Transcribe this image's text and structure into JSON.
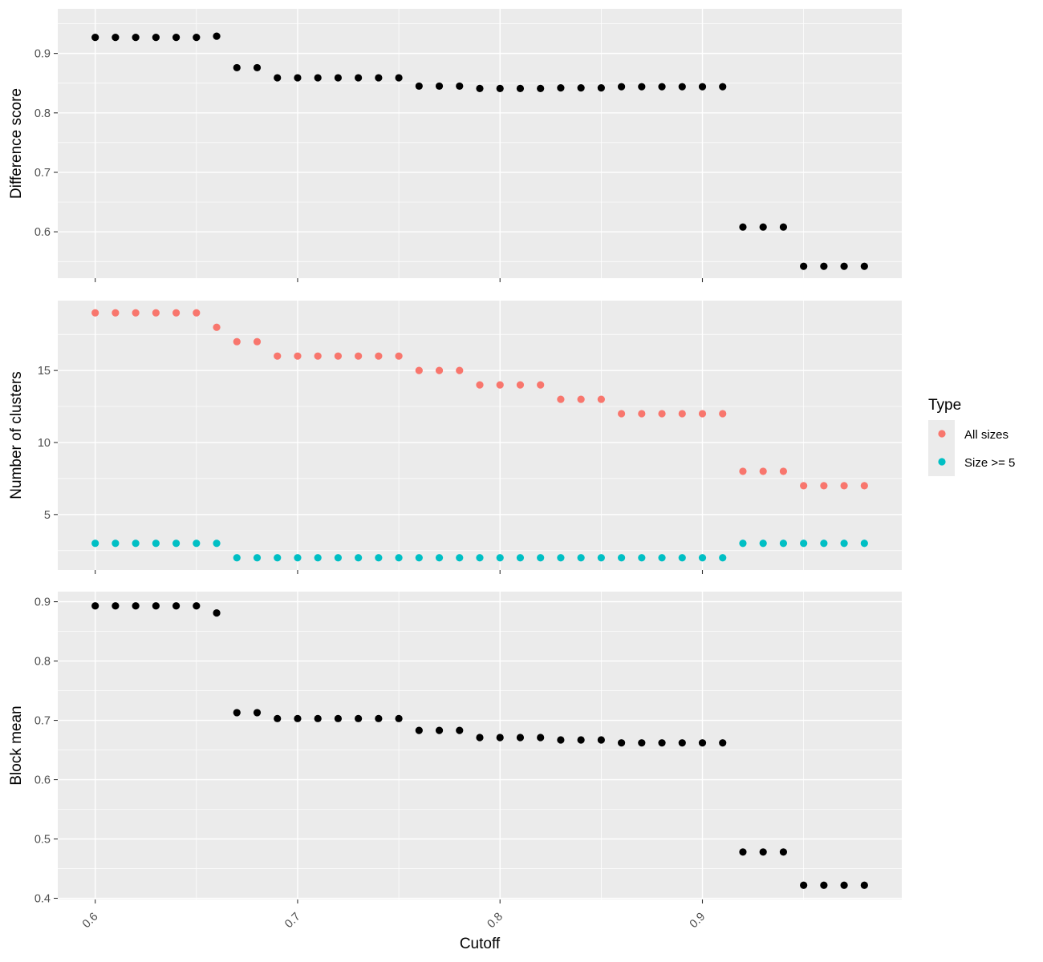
{
  "chart_data": [
    {
      "type": "scatter",
      "ylabel": "Difference score",
      "xlabel": "",
      "xlim": [
        0.5815,
        0.9985
      ],
      "ylim": [
        0.522,
        0.975
      ],
      "xticks": [
        0.6,
        0.7,
        0.8,
        0.9
      ],
      "xtick_labels": [
        "0.6",
        "0.7",
        "0.8",
        "0.9"
      ],
      "yticks": [
        0.6,
        0.7,
        0.8,
        0.9
      ],
      "ytick_labels": [
        "0.6",
        "0.7",
        "0.8",
        "0.9"
      ],
      "grid": true,
      "series": [
        {
          "color": "#000000",
          "x": [
            0.6,
            0.61,
            0.62,
            0.63,
            0.64,
            0.65,
            0.66,
            0.67,
            0.68,
            0.69,
            0.7,
            0.71,
            0.72,
            0.73,
            0.74,
            0.75,
            0.76,
            0.77,
            0.78,
            0.79,
            0.8,
            0.81,
            0.82,
            0.83,
            0.84,
            0.85,
            0.86,
            0.87,
            0.88,
            0.89,
            0.9,
            0.91,
            0.92,
            0.93,
            0.94,
            0.95,
            0.96,
            0.97,
            0.98
          ],
          "y": [
            0.927,
            0.927,
            0.927,
            0.927,
            0.927,
            0.927,
            0.929,
            0.876,
            0.876,
            0.859,
            0.859,
            0.859,
            0.859,
            0.859,
            0.859,
            0.859,
            0.845,
            0.845,
            0.845,
            0.841,
            0.841,
            0.841,
            0.841,
            0.842,
            0.842,
            0.842,
            0.844,
            0.844,
            0.844,
            0.844,
            0.844,
            0.844,
            0.608,
            0.608,
            0.608,
            0.542,
            0.542,
            0.542,
            0.542
          ]
        }
      ]
    },
    {
      "type": "scatter",
      "ylabel": "Number of clusters",
      "xlabel": "",
      "xlim": [
        0.5815,
        0.9985
      ],
      "ylim": [
        1.15,
        19.85
      ],
      "xticks": [
        0.6,
        0.7,
        0.8,
        0.9
      ],
      "xtick_labels": [
        "0.6",
        "0.7",
        "0.8",
        "0.9"
      ],
      "yticks": [
        5,
        10,
        15
      ],
      "ytick_labels": [
        "5",
        "10",
        "15"
      ],
      "grid": true,
      "legend": {
        "title": "Type",
        "position": "right",
        "entries": [
          "All sizes",
          "Size >= 5"
        ]
      },
      "series": [
        {
          "name": "All sizes",
          "color": "#F8766D",
          "x": [
            0.6,
            0.61,
            0.62,
            0.63,
            0.64,
            0.65,
            0.66,
            0.67,
            0.68,
            0.69,
            0.7,
            0.71,
            0.72,
            0.73,
            0.74,
            0.75,
            0.76,
            0.77,
            0.78,
            0.79,
            0.8,
            0.81,
            0.82,
            0.83,
            0.84,
            0.85,
            0.86,
            0.87,
            0.88,
            0.89,
            0.9,
            0.91,
            0.92,
            0.93,
            0.94,
            0.95,
            0.96,
            0.97,
            0.98
          ],
          "y": [
            19,
            19,
            19,
            19,
            19,
            19,
            18,
            17,
            17,
            16,
            16,
            16,
            16,
            16,
            16,
            16,
            15,
            15,
            15,
            14,
            14,
            14,
            14,
            13,
            13,
            13,
            12,
            12,
            12,
            12,
            12,
            12,
            8,
            8,
            8,
            7,
            7,
            7,
            7
          ]
        },
        {
          "name": "Size >= 5",
          "color": "#00BFC4",
          "x": [
            0.6,
            0.61,
            0.62,
            0.63,
            0.64,
            0.65,
            0.66,
            0.67,
            0.68,
            0.69,
            0.7,
            0.71,
            0.72,
            0.73,
            0.74,
            0.75,
            0.76,
            0.77,
            0.78,
            0.79,
            0.8,
            0.81,
            0.82,
            0.83,
            0.84,
            0.85,
            0.86,
            0.87,
            0.88,
            0.89,
            0.9,
            0.91,
            0.92,
            0.93,
            0.94,
            0.95,
            0.96,
            0.97,
            0.98
          ],
          "y": [
            3,
            3,
            3,
            3,
            3,
            3,
            3,
            2,
            2,
            2,
            2,
            2,
            2,
            2,
            2,
            2,
            2,
            2,
            2,
            2,
            2,
            2,
            2,
            2,
            2,
            2,
            2,
            2,
            2,
            2,
            2,
            2,
            3,
            3,
            3,
            3,
            3,
            3,
            3
          ]
        }
      ]
    },
    {
      "type": "scatter",
      "ylabel": "Block mean",
      "xlabel": "Cutoff",
      "xlim": [
        0.5815,
        0.9985
      ],
      "ylim": [
        0.398,
        0.917
      ],
      "xticks": [
        0.6,
        0.7,
        0.8,
        0.9
      ],
      "xtick_labels": [
        "0.6",
        "0.7",
        "0.8",
        "0.9"
      ],
      "yticks": [
        0.4,
        0.5,
        0.6,
        0.7,
        0.8,
        0.9
      ],
      "ytick_labels": [
        "0.4",
        "0.5",
        "0.6",
        "0.7",
        "0.8",
        "0.9"
      ],
      "grid": true,
      "series": [
        {
          "color": "#000000",
          "x": [
            0.6,
            0.61,
            0.62,
            0.63,
            0.64,
            0.65,
            0.66,
            0.67,
            0.68,
            0.69,
            0.7,
            0.71,
            0.72,
            0.73,
            0.74,
            0.75,
            0.76,
            0.77,
            0.78,
            0.79,
            0.8,
            0.81,
            0.82,
            0.83,
            0.84,
            0.85,
            0.86,
            0.87,
            0.88,
            0.89,
            0.9,
            0.91,
            0.92,
            0.93,
            0.94,
            0.95,
            0.96,
            0.97,
            0.98
          ],
          "y": [
            0.893,
            0.893,
            0.893,
            0.893,
            0.893,
            0.893,
            0.881,
            0.713,
            0.713,
            0.703,
            0.703,
            0.703,
            0.703,
            0.703,
            0.703,
            0.703,
            0.683,
            0.683,
            0.683,
            0.671,
            0.671,
            0.671,
            0.671,
            0.667,
            0.667,
            0.667,
            0.662,
            0.662,
            0.662,
            0.662,
            0.662,
            0.662,
            0.478,
            0.478,
            0.478,
            0.422,
            0.422,
            0.422,
            0.422
          ]
        }
      ]
    }
  ]
}
